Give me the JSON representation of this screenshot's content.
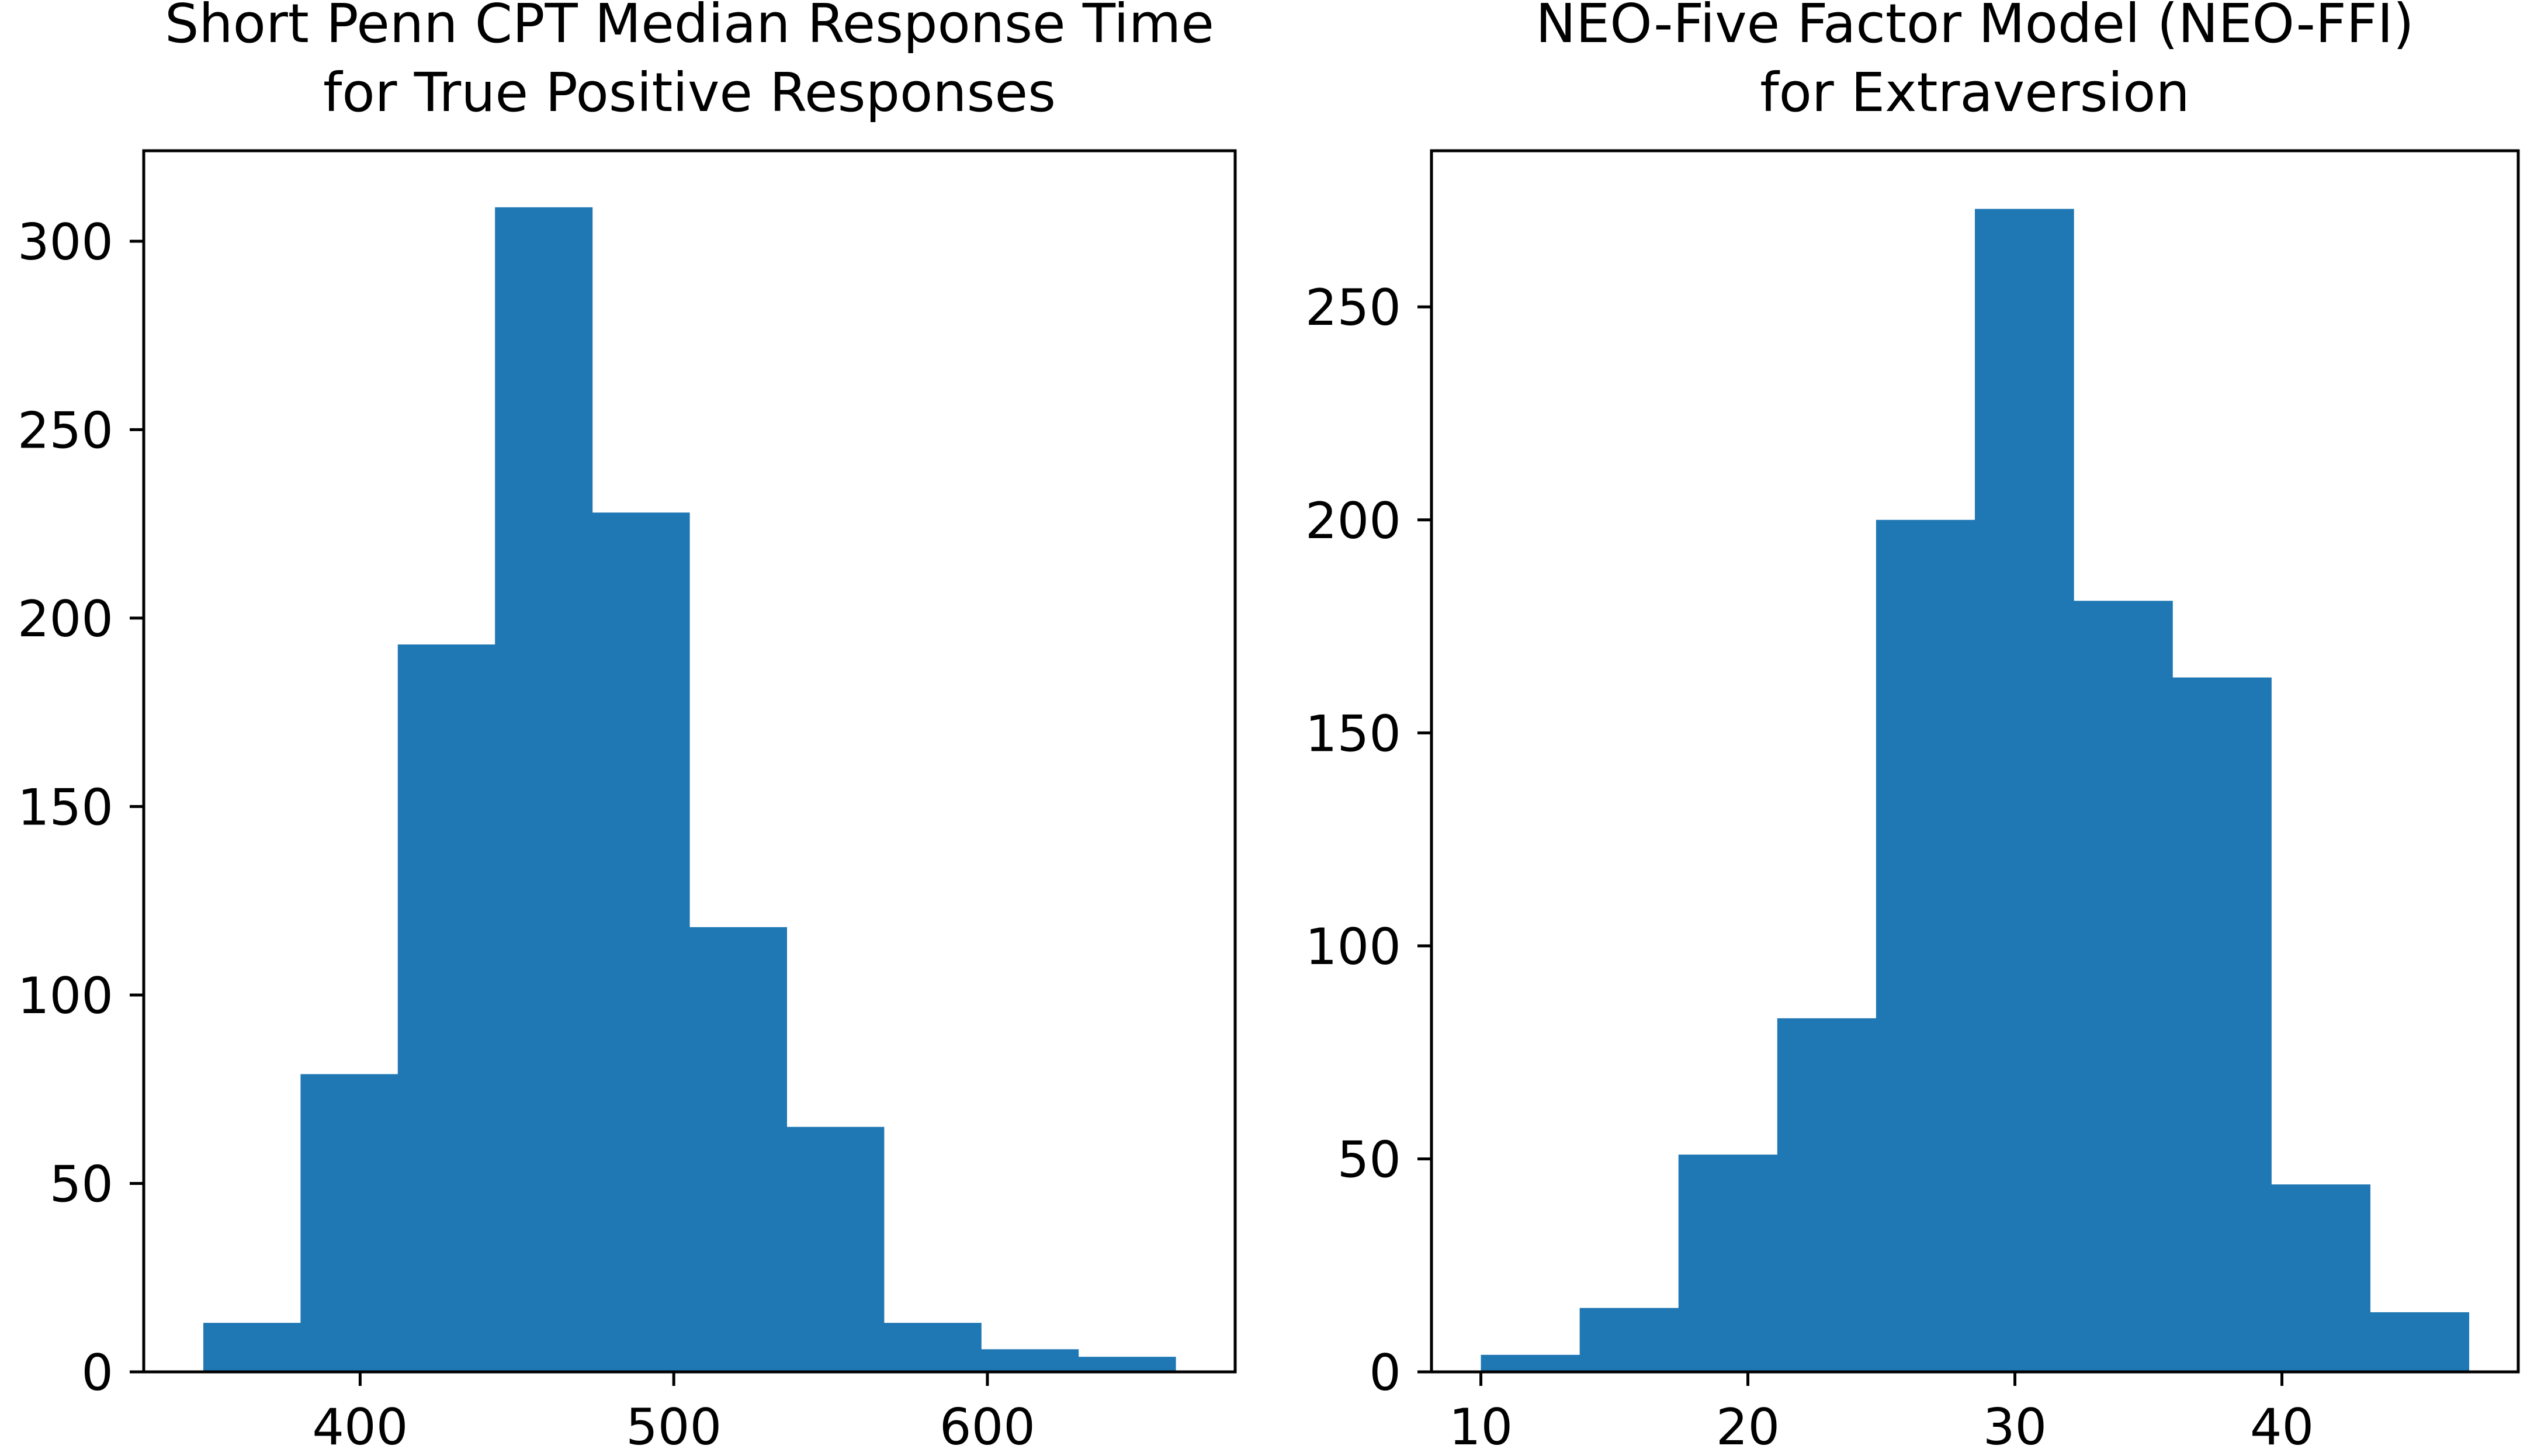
{
  "colors": {
    "bar": "#1f77b4",
    "axis": "#000000",
    "background": "#ffffff"
  },
  "chart_data": [
    {
      "type": "bar",
      "title": "Short Penn CPT Median Response Time\nfor True Positive Responses",
      "xlabel": "",
      "ylabel": "",
      "bin_edges": [
        350,
        381,
        412,
        443,
        474,
        505,
        536,
        567,
        598,
        629,
        660
      ],
      "values": [
        13,
        79,
        193,
        309,
        228,
        118,
        65,
        13,
        6,
        4
      ],
      "xlim": [
        331,
        679
      ],
      "ylim": [
        0,
        324
      ],
      "xticks": [
        400,
        500,
        600
      ],
      "xtick_labels": [
        "400",
        "500",
        "600"
      ],
      "yticks": [
        0,
        50,
        100,
        150,
        200,
        250,
        300
      ],
      "ytick_labels": [
        "0",
        "50",
        "100",
        "150",
        "200",
        "250",
        "300"
      ],
      "grid": false,
      "legend": "none"
    },
    {
      "type": "bar",
      "title": "NEO-Five Factor Model (NEO-FFI)\nfor Extraversion",
      "xlabel": "",
      "ylabel": "",
      "bin_edges": [
        10,
        13.7,
        17.4,
        21.1,
        24.8,
        28.5,
        32.2,
        35.9,
        39.6,
        43.3,
        47
      ],
      "values": [
        4,
        15,
        51,
        83,
        200,
        273,
        181,
        163,
        44,
        14
      ],
      "xlim": [
        8.15,
        48.85
      ],
      "ylim": [
        0,
        286.65
      ],
      "xticks": [
        10,
        20,
        30,
        40
      ],
      "xtick_labels": [
        "10",
        "20",
        "30",
        "40"
      ],
      "yticks": [
        0,
        50,
        100,
        150,
        200,
        250
      ],
      "ytick_labels": [
        "0",
        "50",
        "100",
        "150",
        "200",
        "250"
      ],
      "grid": false,
      "legend": "none"
    }
  ]
}
